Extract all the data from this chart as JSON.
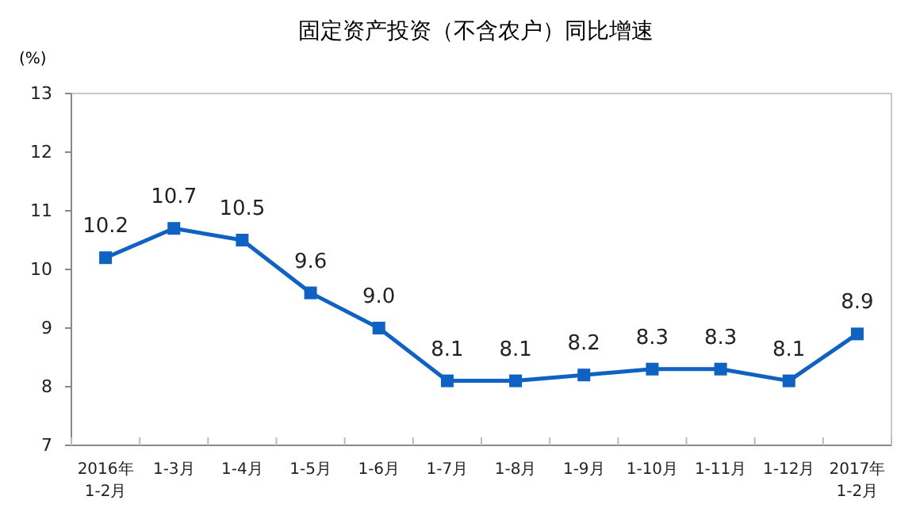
{
  "chart_data": {
    "type": "line",
    "title": "固定资产投资（不含农户）同比增速",
    "ylabel": "(%)",
    "categories": [
      "2016年\n1-2月",
      "1-3月",
      "1-4月",
      "1-5月",
      "1-6月",
      "1-7月",
      "1-8月",
      "1-9月",
      "1-10月",
      "1-11月",
      "1-12月",
      "2017年\n1-2月"
    ],
    "series": [
      {
        "color": "#0f62c2",
        "values": [
          10.2,
          10.7,
          10.5,
          9.6,
          9.0,
          8.1,
          8.1,
          8.2,
          8.3,
          8.3,
          8.1,
          8.9
        ],
        "value_labels": [
          "10.2",
          "10.7",
          "10.5",
          "9.6",
          "9.0",
          "8.1",
          "8.1",
          "8.2",
          "8.3",
          "8.3",
          "8.1",
          "8.9"
        ]
      }
    ],
    "ylim": [
      7,
      13
    ],
    "yticks": [
      7,
      8,
      9,
      10,
      11,
      12,
      13
    ],
    "marker": "square",
    "grid": false
  }
}
